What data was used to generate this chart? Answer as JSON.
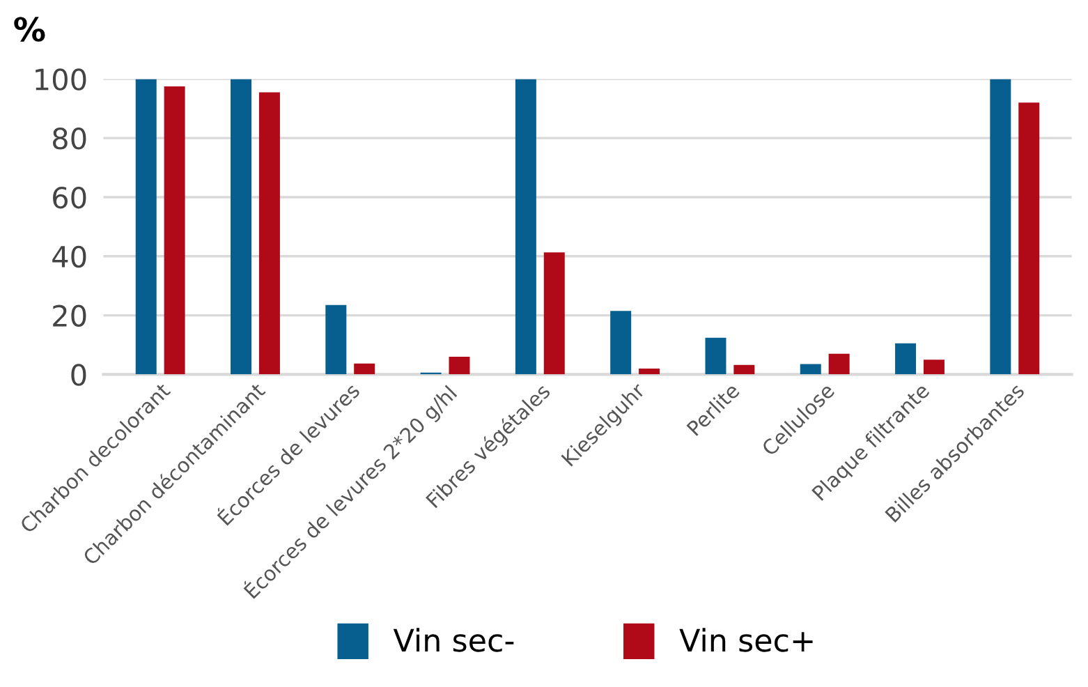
{
  "chart_data": {
    "type": "bar",
    "ylabel": "%",
    "categories": [
      "Charbon decolorant",
      "Charbon décontaminant",
      "Écorces de levures",
      "Écorces de levures 2*20 g/hl",
      "Fibres végétales",
      "Kieselguhr",
      "Perlite",
      "Cellulose",
      "Plaque filtrante",
      "Billes absorbantes"
    ],
    "series": [
      {
        "name": "Vin sec-",
        "color": "#075f8f",
        "values": [
          100,
          100,
          23.5,
          0.6,
          100,
          21.5,
          12.4,
          3.5,
          10.5,
          100
        ]
      },
      {
        "name": "Vin sec+",
        "color": "#b00a18",
        "values": [
          97.5,
          95.5,
          3.7,
          6,
          41.3,
          2,
          3.2,
          7,
          5,
          92
        ]
      }
    ],
    "ylim": [
      0,
      100
    ],
    "yticks": [
      0,
      20,
      40,
      60,
      80,
      100
    ],
    "grid": "y",
    "legend": "bottom"
  }
}
